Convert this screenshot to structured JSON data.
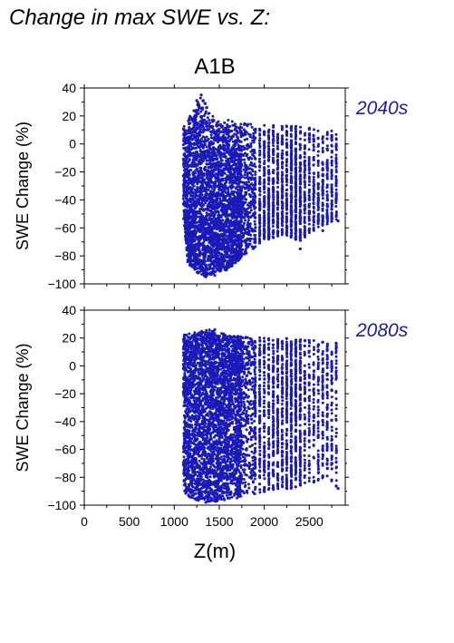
{
  "figure_title": "Change in max SWE vs. Z:",
  "scenario": "A1B",
  "colors": {
    "points": "#1a1ab8",
    "period_label": "#1a1ab8",
    "axes": "#000000"
  },
  "chart_data": [
    {
      "type": "scatter",
      "panel_label": "2040s",
      "xlabel": "",
      "ylabel": "SWE Change (%)",
      "xlim": [
        0,
        2900
      ],
      "ylim": [
        -100,
        40
      ],
      "xticks": [
        0,
        500,
        1000,
        1500,
        2000,
        2500
      ],
      "yticks": [
        -100,
        -80,
        -60,
        -40,
        -20,
        0,
        20,
        40
      ],
      "x_tick_labels_shown": false,
      "x_range_of_points": [
        1100,
        2820
      ],
      "upper_envelope": [
        [
          1100,
          16
        ],
        [
          1200,
          22
        ],
        [
          1250,
          30
        ],
        [
          1300,
          35
        ],
        [
          1400,
          22
        ],
        [
          1500,
          18
        ],
        [
          1700,
          16
        ],
        [
          2000,
          14
        ],
        [
          2200,
          13
        ],
        [
          2500,
          13
        ],
        [
          2820,
          12
        ]
      ],
      "lower_envelope": [
        [
          1100,
          -50
        ],
        [
          1150,
          -85
        ],
        [
          1250,
          -92
        ],
        [
          1350,
          -95
        ],
        [
          1450,
          -92
        ],
        [
          1600,
          -90
        ],
        [
          1800,
          -78
        ],
        [
          2000,
          -70
        ],
        [
          2200,
          -65
        ],
        [
          2400,
          -70
        ],
        [
          2600,
          -60
        ],
        [
          2820,
          -55
        ]
      ],
      "points": [
        [
          1300,
          35
        ],
        [
          1250,
          31
        ],
        [
          1340,
          29
        ],
        [
          1280,
          26
        ],
        [
          1350,
          -95
        ],
        [
          1450,
          -94
        ],
        [
          1500,
          -90
        ],
        [
          1650,
          -80
        ],
        [
          1800,
          -78
        ],
        [
          2400,
          -75
        ],
        [
          2650,
          -62
        ],
        [
          2820,
          -55
        ]
      ]
    },
    {
      "type": "scatter",
      "panel_label": "2080s",
      "xlabel": "Z(m)",
      "ylabel": "SWE Change (%)",
      "xlim": [
        0,
        2900
      ],
      "ylim": [
        -100,
        40
      ],
      "xticks": [
        0,
        500,
        1000,
        1500,
        2000,
        2500
      ],
      "yticks": [
        -100,
        -80,
        -60,
        -40,
        -20,
        0,
        20,
        40
      ],
      "x_tick_labels_shown": true,
      "x_range_of_points": [
        1100,
        2820
      ],
      "upper_envelope": [
        [
          1100,
          22
        ],
        [
          1200,
          24
        ],
        [
          1400,
          26
        ],
        [
          1600,
          22
        ],
        [
          1800,
          21
        ],
        [
          2000,
          20
        ],
        [
          2200,
          20
        ],
        [
          2400,
          19
        ],
        [
          2600,
          18
        ],
        [
          2820,
          17
        ]
      ],
      "lower_envelope": [
        [
          1100,
          -90
        ],
        [
          1200,
          -96
        ],
        [
          1350,
          -98
        ],
        [
          1500,
          -97
        ],
        [
          1700,
          -95
        ],
        [
          1900,
          -92
        ],
        [
          2100,
          -90
        ],
        [
          2300,
          -88
        ],
        [
          2500,
          -85
        ],
        [
          2700,
          -80
        ],
        [
          2820,
          -88
        ]
      ],
      "points": [
        [
          1350,
          -98
        ],
        [
          1400,
          -97
        ],
        [
          1450,
          26
        ],
        [
          2650,
          17
        ],
        [
          2820,
          -88
        ],
        [
          2700,
          -79
        ],
        [
          1250,
          -96
        ]
      ]
    }
  ]
}
